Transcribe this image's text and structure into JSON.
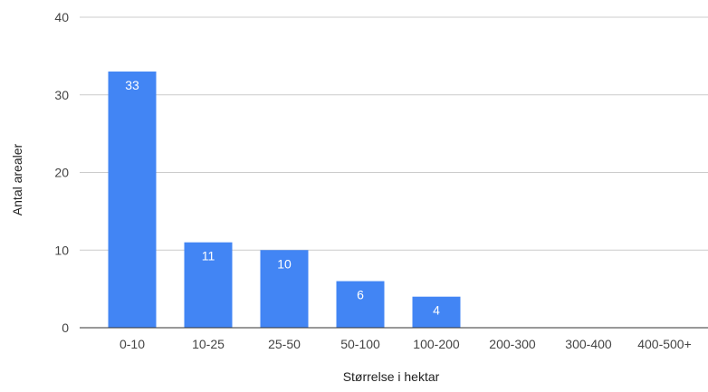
{
  "chart_data": {
    "type": "bar",
    "categories": [
      "0-10",
      "10-25",
      "25-50",
      "50-100",
      "100-200",
      "200-300",
      "300-400",
      "400-500+"
    ],
    "values": [
      33,
      11,
      10,
      6,
      4,
      0,
      0,
      0
    ],
    "data_labels": [
      "33",
      "11",
      "10",
      "6",
      "4",
      "",
      "",
      ""
    ],
    "title": "",
    "xlabel": "Størrelse i hektar",
    "ylabel": "Antal arealer",
    "ylim": [
      0,
      40
    ],
    "yticks": [
      0,
      10,
      20,
      30,
      40
    ],
    "grid": true,
    "legend": "none",
    "colors": {
      "bar": "#4285F4",
      "grid": "#cccccc",
      "baseline": "#333333",
      "label_inside": "#ffffff",
      "tick_text": "#444444"
    }
  }
}
